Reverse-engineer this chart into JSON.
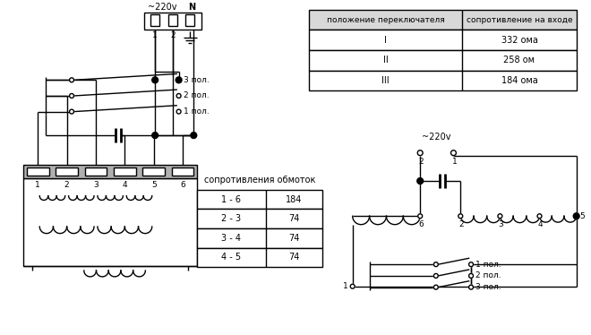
{
  "bg_color": "#ffffff",
  "table1_header": [
    "положение переключателя",
    "сопротивление на входе"
  ],
  "table1_rows": [
    [
      "I",
      "332 ома"
    ],
    [
      "II",
      "258 ом"
    ],
    [
      "III",
      "184 ома"
    ]
  ],
  "table2_header": "сопротивления обмоток",
  "table2_rows": [
    [
      "1 - 6",
      "184"
    ],
    [
      "2 - 3",
      "74"
    ],
    [
      "3 - 4",
      "74"
    ],
    [
      "4 - 5",
      "74"
    ]
  ],
  "label_220v_left": "~220v",
  "label_N": "N",
  "label_220v_right": "~220v",
  "switch_labels_left": [
    "3 пол.",
    "2 пол.",
    "1 пол."
  ],
  "switch_labels_right": [
    "1 пол.",
    "2 пол.",
    "3 пол."
  ]
}
